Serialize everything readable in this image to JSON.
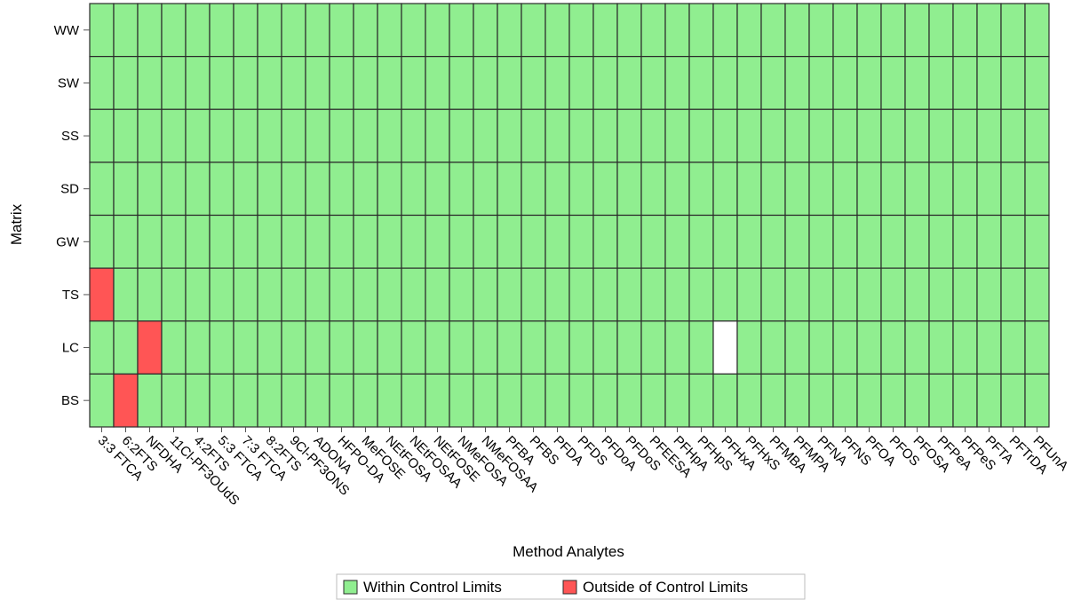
{
  "chart_data": {
    "type": "heatmap",
    "xlabel": "Method Analytes",
    "ylabel": "Matrix",
    "x_categories": [
      "3:3 FTCA",
      "6:2FTS",
      "NFDHA",
      "11Cl-PF3OUdS",
      "4:2FTS",
      "5:3 FTCA",
      "7:3 FTCA",
      "8:2FTS",
      "9Cl-PF3ONS",
      "ADONA",
      "HFPO-DA",
      "MeFOSE",
      "NEtFOSA",
      "NEtFOSAA",
      "NEtFOSE",
      "NMeFOSA",
      "NMeFOSAA",
      "PFBA",
      "PFBS",
      "PFDA",
      "PFDS",
      "PFDoA",
      "PFDoS",
      "PFEESA",
      "PFHpA",
      "PFHpS",
      "PFHxA",
      "PFHxS",
      "PFMBA",
      "PFMPA",
      "PFNA",
      "PFNS",
      "PFOA",
      "PFOS",
      "PFOSA",
      "PFPeA",
      "PFPeS",
      "PFTA",
      "PFTrDA",
      "PFUnA"
    ],
    "y_categories": [
      "WW",
      "SW",
      "SS",
      "SD",
      "GW",
      "TS",
      "LC",
      "BS"
    ],
    "default_status": "Within Control Limits",
    "outside_cells": [
      {
        "y": "TS",
        "x": "3:3 FTCA"
      },
      {
        "y": "LC",
        "x": "NFDHA"
      },
      {
        "y": "BS",
        "x": "6:2FTS"
      }
    ],
    "missing_cells": [
      {
        "y": "LC",
        "x": "PFHxA"
      }
    ],
    "legend": [
      {
        "label": "Within Control Limits",
        "color": "#90EE90"
      },
      {
        "label": "Outside of Control Limits",
        "color": "#FF5555"
      }
    ],
    "legend_position": "bottom-center",
    "colors": {
      "within": "#90EE90",
      "outside": "#FF5555",
      "missing": "#FFFFFF",
      "border": "#2b2b2b"
    }
  }
}
